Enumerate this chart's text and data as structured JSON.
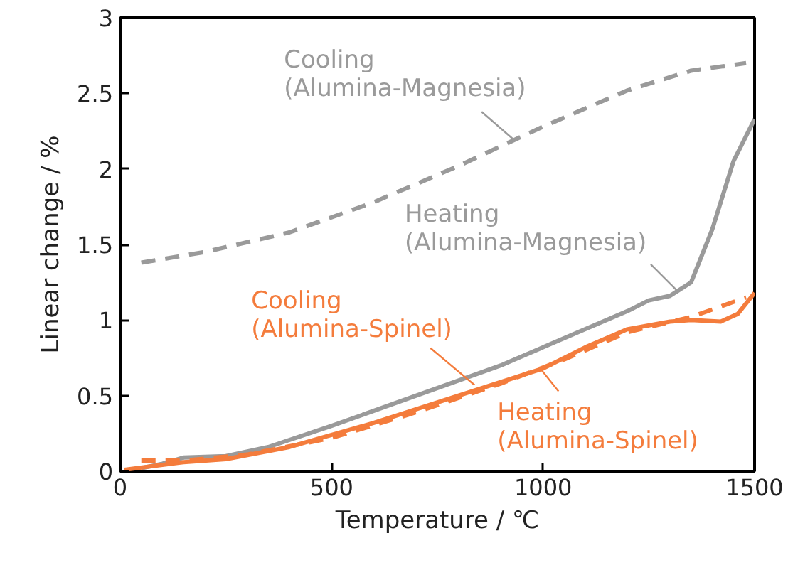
{
  "chart_data": {
    "type": "line",
    "xlabel": "Temperature / ℃",
    "ylabel": "Linear change / %",
    "xlim": [
      0,
      1500
    ],
    "ylim": [
      0,
      3
    ],
    "xticks": [
      0,
      500,
      1000,
      1500
    ],
    "yticks": [
      0,
      0.5,
      1,
      1.5,
      2,
      2.5,
      3
    ],
    "grid": false,
    "marker": "none",
    "series": [
      {
        "color": "#9a9a9a",
        "line_style": "dashed",
        "x": [
          50,
          200,
          400,
          600,
          800,
          1000,
          1200,
          1350,
          1480
        ],
        "values": [
          1.38,
          1.45,
          1.58,
          1.78,
          2.02,
          2.28,
          2.52,
          2.65,
          2.7
        ]
      },
      {
        "color": "#9a9a9a",
        "line_style": "solid",
        "x": [
          50,
          100,
          150,
          250,
          350,
          500,
          700,
          900,
          1050,
          1200,
          1250,
          1300,
          1350,
          1400,
          1450,
          1500
        ],
        "values": [
          0.02,
          0.05,
          0.09,
          0.1,
          0.16,
          0.3,
          0.5,
          0.7,
          0.88,
          1.06,
          1.13,
          1.16,
          1.25,
          1.6,
          2.05,
          2.33
        ]
      },
      {
        "color": "#f47c3c",
        "line_style": "dashed",
        "x": [
          50,
          150,
          300,
          500,
          700,
          900,
          1050,
          1200,
          1350,
          1480
        ],
        "values": [
          0.07,
          0.07,
          0.11,
          0.22,
          0.39,
          0.58,
          0.74,
          0.92,
          1.02,
          1.15
        ]
      },
      {
        "color": "#f47c3c",
        "line_style": "solid",
        "x": [
          10,
          150,
          250,
          400,
          600,
          800,
          1000,
          1100,
          1200,
          1300,
          1350,
          1420,
          1460,
          1500
        ],
        "values": [
          0.01,
          0.06,
          0.08,
          0.16,
          0.32,
          0.5,
          0.68,
          0.82,
          0.94,
          0.99,
          1.0,
          0.99,
          1.04,
          1.18
        ]
      }
    ],
    "annotations": [
      {
        "text": "Cooling\n(Alumina-Magnesia)",
        "x": 932,
        "y": 2.19
      },
      {
        "text": "Heating\n(Alumina-Magnesia)",
        "x": 1315,
        "y": 1.2
      },
      {
        "text": "Cooling\n(Alumina-Spinel)",
        "x": 838,
        "y": 0.57
      },
      {
        "text": "Heating\n(Alumina-Spinel)",
        "x": 996,
        "y": 0.67
      }
    ]
  }
}
